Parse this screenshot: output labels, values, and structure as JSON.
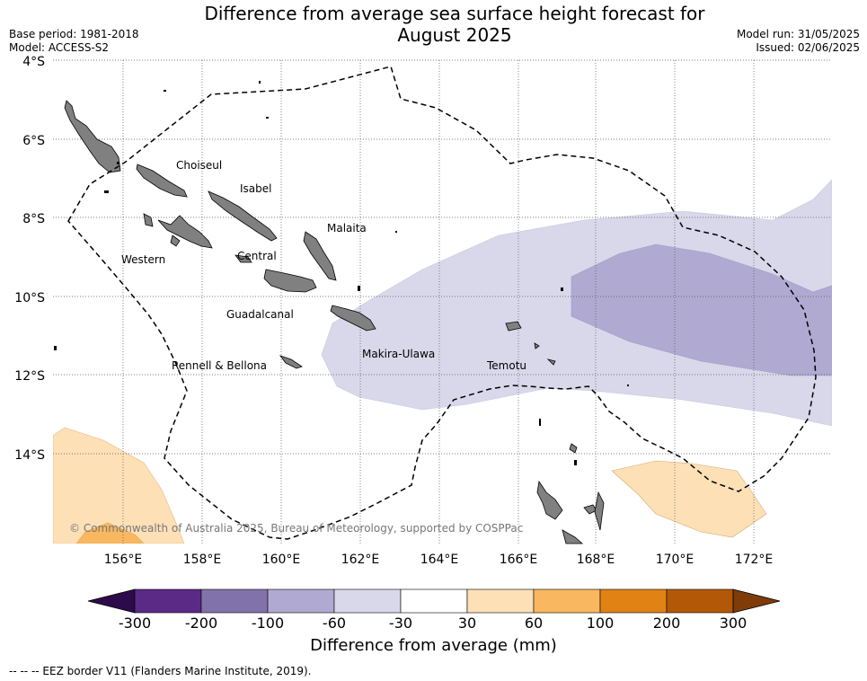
{
  "title_line1": "Difference from average sea surface height forecast for",
  "title_line2": "August 2025",
  "base_period": "Base period: 1981-2018",
  "model": "Model: ACCESS-S2",
  "model_run": "Model run: 31/05/2025",
  "issued": "Issued: 02/06/2025",
  "lat_labels": [
    "4°S",
    "6°S",
    "8°S",
    "10°S",
    "12°S",
    "14°S"
  ],
  "lon_labels": [
    "156°E",
    "158°E",
    "160°E",
    "162°E",
    "164°E",
    "166°E",
    "168°E",
    "170°E",
    "172°E"
  ],
  "places": [
    "Choiseul",
    "Isabel",
    "Malaita",
    "Western",
    "Central",
    "Guadalcanal",
    "Makira-Ulawa",
    "Rennell & Bellona",
    "Temotu"
  ],
  "copyright": "© Commonwealth of Australia 2025, Bureau of Meteorology, supported by COSPPac",
  "colorbar": {
    "ticks": [
      "-300",
      "-200",
      "-100",
      "-60",
      "-30",
      "30",
      "60",
      "100",
      "200",
      "300"
    ],
    "colors": [
      "#2d0a4a",
      "#5b2a86",
      "#8272ab",
      "#b0a9d1",
      "#d8d8ea",
      "#ffffff",
      "#fde0b6",
      "#f9b760",
      "#e08214",
      "#b35806",
      "#7f3b08"
    ],
    "title": "Difference from average (mm)"
  },
  "footnote": "--  --  -- EEZ border V11 (Flanders Marine Institute, 2019)."
}
